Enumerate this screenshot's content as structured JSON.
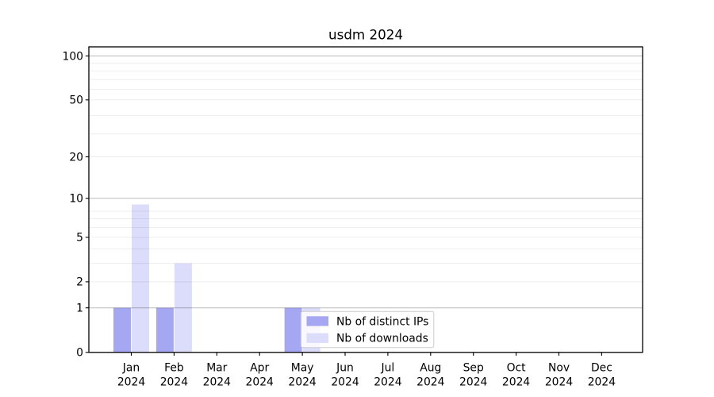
{
  "chart_data": {
    "type": "bar",
    "title": "usdm 2024",
    "categories": [
      "Jan 2024",
      "Feb 2024",
      "Mar 2024",
      "Apr 2024",
      "May 2024",
      "Jun 2024",
      "Jul 2024",
      "Aug 2024",
      "Sep 2024",
      "Oct 2024",
      "Nov 2024",
      "Dec 2024"
    ],
    "series": [
      {
        "name": "Nb of distinct IPs",
        "color": "#a5a7f3",
        "values": [
          1,
          1,
          0,
          0,
          1,
          0,
          0,
          0,
          0,
          0,
          0,
          0
        ]
      },
      {
        "name": "Nb of downloads",
        "color": "#dcddfa",
        "values": [
          9,
          3,
          0,
          0,
          1,
          0,
          0,
          0,
          0,
          0,
          0,
          0
        ]
      }
    ],
    "xlabel": "",
    "ylabel": "",
    "yscale": "log1p",
    "yticks": [
      0,
      1,
      2,
      5,
      10,
      20,
      50,
      100
    ],
    "ylim": [
      0,
      116
    ],
    "grid": "horizontal",
    "grid_major_values": [
      1,
      10,
      100
    ],
    "grid_minor_log1p_values": [
      3,
      4,
      5,
      6,
      7,
      8,
      9,
      30,
      40,
      60,
      70,
      80,
      90
    ],
    "grid_minor_extra_values": [
      20,
      50
    ],
    "legend": {
      "position": "inside-lower-center",
      "items": [
        "Nb of distinct IPs",
        "Nb of downloads"
      ]
    },
    "colors": {
      "bar_distinct_ips": "#a5a7f3",
      "bar_downloads": "#dcddfa",
      "major_grid": "#b9b9b9",
      "minor_grid": "#ececec",
      "axis": "#000000",
      "legend_border": "#cccccc",
      "background": "#ffffff"
    }
  }
}
